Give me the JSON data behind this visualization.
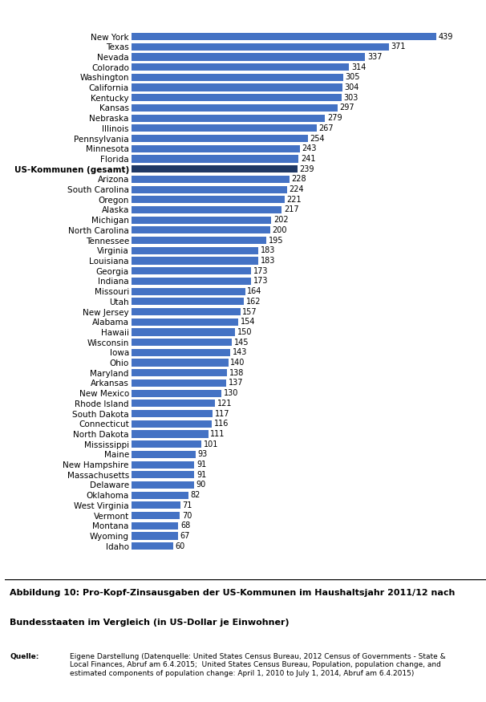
{
  "categories": [
    "New York",
    "Texas",
    "Nevada",
    "Colorado",
    "Washington",
    "California",
    "Kentucky",
    "Kansas",
    "Nebraska",
    "Illinois",
    "Pennsylvania",
    "Minnesota",
    "Florida",
    "US-Kommunen (gesamt)",
    "Arizona",
    "South Carolina",
    "Oregon",
    "Alaska",
    "Michigan",
    "North Carolina",
    "Tennessee",
    "Virginia",
    "Louisiana",
    "Georgia",
    "Indiana",
    "Missouri",
    "Utah",
    "New Jersey",
    "Alabama",
    "Hawaii",
    "Wisconsin",
    "Iowa",
    "Ohio",
    "Maryland",
    "Arkansas",
    "New Mexico",
    "Rhode Island",
    "South Dakota",
    "Connecticut",
    "North Dakota",
    "Mississippi",
    "Maine",
    "New Hampshire",
    "Massachusetts",
    "Delaware",
    "Oklahoma",
    "West Virginia",
    "Vermont",
    "Montana",
    "Wyoming",
    "Idaho"
  ],
  "values": [
    439,
    371,
    337,
    314,
    305,
    304,
    303,
    297,
    279,
    267,
    254,
    243,
    241,
    239,
    228,
    224,
    221,
    217,
    202,
    200,
    195,
    183,
    183,
    173,
    173,
    164,
    162,
    157,
    154,
    150,
    145,
    143,
    140,
    138,
    137,
    130,
    121,
    117,
    116,
    111,
    101,
    93,
    91,
    91,
    90,
    82,
    71,
    70,
    68,
    67,
    60
  ],
  "bar_color_normal": "#4472C4",
  "bar_color_highlight": "#1F3864",
  "highlight_label": "US-Kommunen (gesamt)",
  "xlim": [
    0,
    490
  ],
  "title_line1": "Abbildung 10: Pro-Kopf-Zinsausgaben der US-Kommunen im Haushaltsjahr 2011/12 nach",
  "title_line2": "Bundesstaaten im Vergleich (in US-Dollar je Einwohner)",
  "source_label": "Quelle:",
  "source_text": "Eigene Darstellung (Datenquelle: United States Census Bureau, 2012 Census of Governments - State &\nLocal Finances, Abruf am 6.4.2015;  United States Census Bureau, Population, population change, and\nestimated components of population change: April 1, 2010 to July 1, 2014, Abruf am 6.4.2015)",
  "bar_height": 0.72,
  "value_fontsize": 7.0,
  "label_fontsize": 7.5,
  "title_fontsize": 8.0,
  "source_fontsize": 6.5,
  "bg_color": "#FFFFFF"
}
